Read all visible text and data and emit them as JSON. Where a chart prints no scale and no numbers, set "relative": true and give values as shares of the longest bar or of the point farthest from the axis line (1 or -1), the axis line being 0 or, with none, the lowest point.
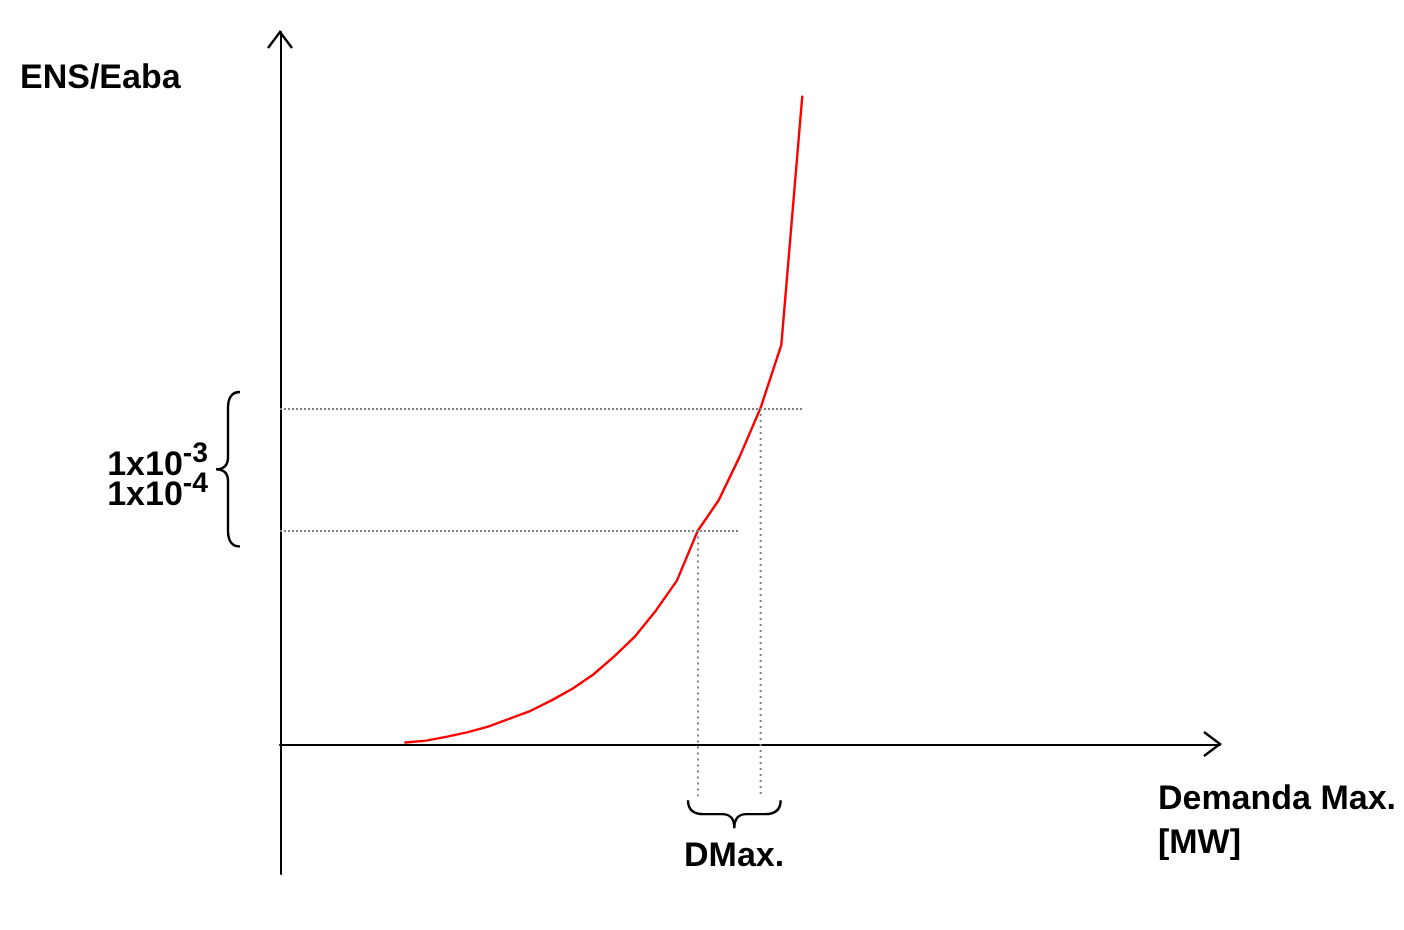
{
  "chart_data": {
    "type": "line",
    "relative": true,
    "ylabel": "ENS/Eaba",
    "xlabel": "Demanda Max.\n[MW]",
    "grid": false,
    "marker": "none",
    "line_style": "solid",
    "categories": [
      null,
      null,
      null,
      null,
      null,
      null,
      null,
      null,
      null,
      null,
      null,
      null,
      null,
      null,
      null,
      null,
      null,
      null,
      null,
      null,
      null,
      null,
      null,
      null,
      null,
      null,
      null,
      null,
      null,
      null,
      null,
      null,
      null,
      null,
      null,
      null,
      null,
      null,
      null,
      null,
      null,
      null,
      null,
      null,
      null,
      null
    ],
    "series": [
      {
        "color": "#ff0000",
        "values": [
          null,
          null,
          null,
          null,
          null,
          null,
          0.003,
          0.006,
          0.012,
          0.019,
          0.028,
          0.04,
          0.052,
          0.068,
          0.086,
          0.108,
          0.136,
          0.167,
          0.207,
          0.253,
          0.33,
          0.377,
          0.444,
          0.519,
          0.617,
          1,
          null,
          null,
          null,
          null,
          null,
          null,
          null,
          null,
          null,
          null,
          null,
          null,
          null,
          null,
          null,
          null,
          null,
          null,
          null,
          null
        ]
      }
    ],
    "ref_lines": [
      {
        "axis": "y",
        "value": 0.519,
        "label": "1x10$^{-3}$",
        "color": "#808080",
        "line_style": "dotted"
      },
      {
        "axis": "y",
        "value": 0.33,
        "label": "1x10$^{-4}$",
        "color": "#808080",
        "line_style": "dotted"
      }
    ],
    "annotations": [
      "DMax."
    ]
  }
}
